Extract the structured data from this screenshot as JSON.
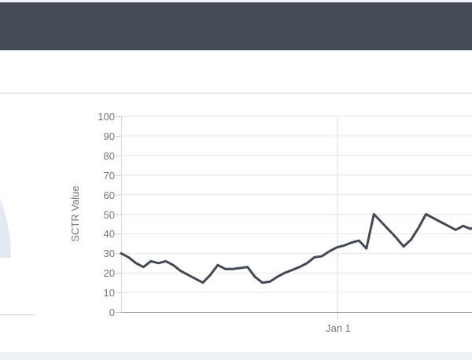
{
  "page": {
    "top_strip_color": "#f0f3f7",
    "header_color": "#444b57",
    "divider_color": "#ccd5dd",
    "background_color": "#ffffff",
    "bottom_strip_color": "#edf1f5"
  },
  "gauge_fragment": {
    "fill_color": "#e3e9f0",
    "baseline_color": "#c3cdd7"
  },
  "chart_data": {
    "type": "line",
    "title": "",
    "xlabel": "",
    "ylabel": "SCTR Value",
    "ylim": [
      0,
      100
    ],
    "yticks": [
      0,
      10,
      20,
      30,
      40,
      50,
      60,
      70,
      80,
      90,
      100
    ],
    "xticks": [
      {
        "label": "Jan 1",
        "index": 29.1
      }
    ],
    "grid": true,
    "legend_position": "none",
    "axis_text_color": "#757575",
    "gridline_color": "#e7e7e7",
    "axis_line_color": "#a6a6a6",
    "y_axis_line_color": "#d9d9d9",
    "tick_mark_color": "#c9c9c9",
    "series": [
      {
        "name": "SCTR Value",
        "color": "#424954",
        "stroke_width": 3,
        "values": [
          30,
          28,
          25,
          23,
          26,
          25,
          26,
          24,
          21,
          19,
          17,
          15,
          19,
          24,
          22,
          22,
          22.5,
          23,
          18,
          15,
          15.5,
          18,
          20,
          21.5,
          23,
          25,
          28,
          28.5,
          31,
          33,
          34,
          35.5,
          36.5,
          32.5,
          50,
          46,
          42,
          38,
          33.5,
          37,
          43,
          50,
          48,
          46,
          44,
          42,
          44,
          42.5,
          44
        ]
      }
    ]
  }
}
